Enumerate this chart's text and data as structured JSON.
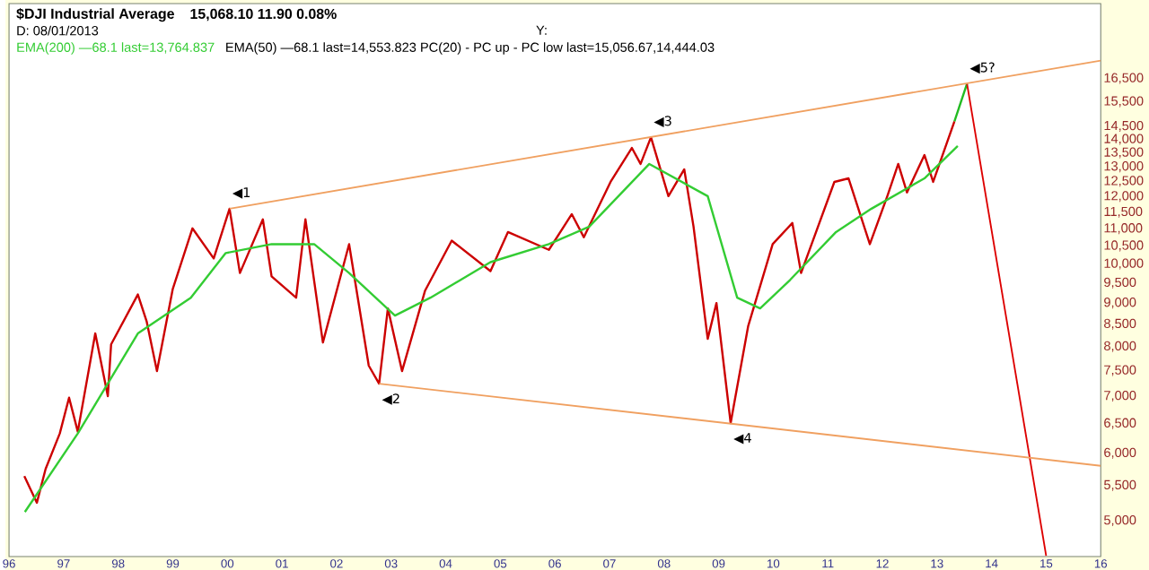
{
  "chart_data": {
    "type": "line",
    "title": "$DJI Industrial Average",
    "subtitle": "15,068.10 11.90 0.08%",
    "annotations": [
      "D: 08/01/2013",
      "Y:",
      "EMA(50) —68.1 last=14,553.823 PC(20) - PC up - PC low last=15,056.67,14,444.03",
      {
        "text": "◀1",
        "x": 2000.04,
        "y": 11610
      },
      {
        "text": "◀2",
        "x": 2002.78,
        "y": 7240
      },
      {
        "text": "◀3",
        "x": 2007.76,
        "y": 14080
      },
      {
        "text": "◀4",
        "x": 2009.22,
        "y": 6510
      },
      {
        "text": "◀5?",
        "x": 2013.55,
        "y": 16270
      }
    ],
    "log": "y",
    "legend": "top left",
    "marker": "none",
    "line_style": "solid",
    "xlim": [
      1996,
      2016
    ],
    "ylim": [
      4540,
      20200
    ],
    "xticks": [
      {
        "value": 1996,
        "label": "96"
      },
      {
        "value": 1997,
        "label": "97"
      },
      {
        "value": 1998,
        "label": "98"
      },
      {
        "value": 1999,
        "label": "99"
      },
      {
        "value": 2000,
        "label": "00"
      },
      {
        "value": 2001,
        "label": "01"
      },
      {
        "value": 2002,
        "label": "02"
      },
      {
        "value": 2003,
        "label": "03"
      },
      {
        "value": 2004,
        "label": "04"
      },
      {
        "value": 2005,
        "label": "05"
      },
      {
        "value": 2006,
        "label": "06"
      },
      {
        "value": 2007,
        "label": "07"
      },
      {
        "value": 2008,
        "label": "08"
      },
      {
        "value": 2009,
        "label": "09"
      },
      {
        "value": 2010,
        "label": "10"
      },
      {
        "value": 2011,
        "label": "11"
      },
      {
        "value": 2012,
        "label": "12"
      },
      {
        "value": 2013,
        "label": "13"
      },
      {
        "value": 2014,
        "label": "14"
      },
      {
        "value": 2015,
        "label": "15"
      },
      {
        "value": 2016,
        "label": "16"
      }
    ],
    "yticks": [
      {
        "value": 5000,
        "label": "5,000"
      },
      {
        "value": 5500,
        "label": "5,500"
      },
      {
        "value": 6000,
        "label": "6,000"
      },
      {
        "value": 6500,
        "label": "6,500"
      },
      {
        "value": 7000,
        "label": "7,000"
      },
      {
        "value": 7500,
        "label": "7,500"
      },
      {
        "value": 8000,
        "label": "8,000"
      },
      {
        "value": 8500,
        "label": "8,500"
      },
      {
        "value": 9000,
        "label": "9,000"
      },
      {
        "value": 9500,
        "label": "9,500"
      },
      {
        "value": 10000,
        "label": "10,000"
      },
      {
        "value": 10500,
        "label": "10,500"
      },
      {
        "value": 11000,
        "label": "11,000"
      },
      {
        "value": 11500,
        "label": "11,500"
      },
      {
        "value": 12000,
        "label": "12,000"
      },
      {
        "value": 12500,
        "label": "12,500"
      },
      {
        "value": 13000,
        "label": "13,000"
      },
      {
        "value": 13500,
        "label": "13,500"
      },
      {
        "value": 14000,
        "label": "14,000"
      },
      {
        "value": 14500,
        "label": "14,500"
      },
      {
        "value": 15500,
        "label": "15,500"
      },
      {
        "value": 16500,
        "label": "16,500"
      }
    ],
    "series": [
      {
        "color": "#cc0000",
        "x": [
          1996.28,
          1996.51,
          1996.67,
          1996.93,
          1997.1,
          1997.26,
          1997.58,
          1997.81,
          1997.87,
          1998.36,
          1998.52,
          1998.71,
          1999.0,
          1999.36,
          1999.75,
          2000.04,
          2000.23,
          2000.65,
          2000.81,
          2001.26,
          2001.43,
          2001.75,
          2002.23,
          2002.59,
          2002.78,
          2002.94,
          2003.2,
          2003.62,
          2004.11,
          2004.82,
          2005.14,
          2005.89,
          2006.31,
          2006.53,
          2007.02,
          2007.41,
          2007.57,
          2007.76,
          2008.08,
          2008.37,
          2008.54,
          2008.8,
          2008.96,
          2009.22,
          2009.54,
          2009.99,
          2010.35,
          2010.51,
          2011.12,
          2011.38,
          2011.77,
          2012.09,
          2012.29,
          2012.45,
          2012.77,
          2012.93,
          2013.32
        ],
        "values": [
          5640,
          5250,
          5750,
          6330,
          6970,
          6360,
          8290,
          7000,
          8050,
          9210,
          8570,
          7490,
          9350,
          11010,
          10150,
          11610,
          9760,
          11280,
          9670,
          9130,
          11280,
          8090,
          10550,
          7600,
          7240,
          8870,
          7490,
          9300,
          10650,
          9810,
          10900,
          10390,
          11440,
          10750,
          12480,
          13680,
          13100,
          14080,
          12010,
          12910,
          11060,
          8170,
          9000,
          6510,
          8450,
          10550,
          11170,
          9760,
          12480,
          12600,
          10550,
          12010,
          13100,
          12130,
          13420,
          12480,
          14700
        ]
      },
      {
        "name": "EMA(200) —68.1 last=13,764.837",
        "color": "#33cc33",
        "x": [
          1996.29,
          1997.26,
          1998.36,
          1999.33,
          1999.97,
          2000.81,
          2001.59,
          2002.23,
          2003.07,
          2003.72,
          2004.82,
          2005.89,
          2006.63,
          2007.73,
          2008.8,
          2009.34,
          2009.76,
          2010.31,
          2011.15,
          2011.8,
          2012.77,
          2013.38
        ],
        "values": [
          5120,
          6330,
          8290,
          9130,
          10300,
          10550,
          10550,
          9760,
          8700,
          9130,
          10050,
          10550,
          11060,
          13100,
          12010,
          9130,
          8870,
          9580,
          10900,
          11610,
          12600,
          13750
        ]
      },
      {
        "color": "#22bb22",
        "x": [
          2013.32,
          2013.55
        ],
        "values": [
          14700,
          16270
        ]
      },
      {
        "color": "#dd0000",
        "x": [
          2013.55,
          2015.0
        ],
        "values": [
          16270,
          4550
        ]
      },
      {
        "color": "#f0a060",
        "x": [
          2000.04,
          2016.0
        ],
        "values": [
          11610,
          17320
        ]
      },
      {
        "color": "#f0a060",
        "x": [
          2002.78,
          2016.0
        ],
        "values": [
          7240,
          5800
        ]
      }
    ]
  }
}
